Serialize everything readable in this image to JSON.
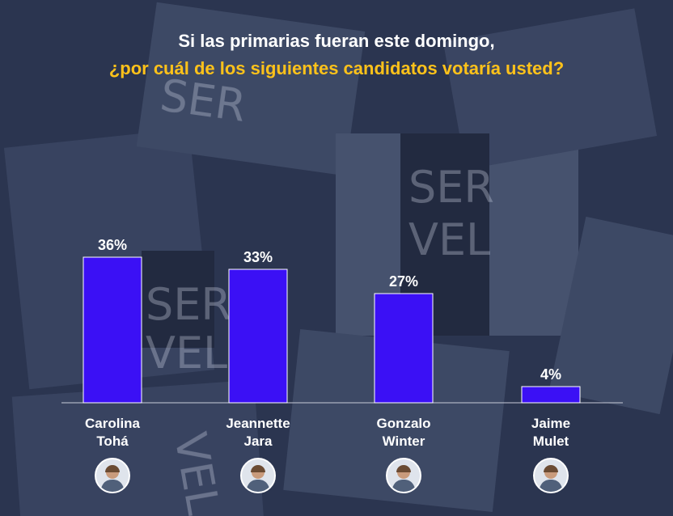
{
  "title_line1": "Si las primarias fueran este domingo,",
  "title_line2": "¿por cuál de los siguientes candidatos votaría usted?",
  "colors": {
    "bar": "#3b10f5",
    "title_highlight": "#ffc21a",
    "text": "#ffffff",
    "background": "#2b3550"
  },
  "background_watermark": [
    "SER",
    "VEL",
    "SER",
    "VEL",
    "SER",
    "VEL"
  ],
  "chart_data": {
    "type": "bar",
    "categories": [
      "Carolina Tohá",
      "Jeannette Jara",
      "Gonzalo Winter",
      "Jaime Mulet"
    ],
    "category_lines": [
      [
        "Carolina",
        "Tohá"
      ],
      [
        "Jeannette",
        "Jara"
      ],
      [
        "Gonzalo",
        "Winter"
      ],
      [
        "Jaime",
        "Mulet"
      ]
    ],
    "values": [
      36,
      33,
      27,
      4
    ],
    "value_labels": [
      "36%",
      "33%",
      "27%",
      "4%"
    ],
    "unit": "%",
    "ylim": [
      0,
      40
    ],
    "grid": false,
    "legend": "none",
    "avatar_icons": [
      "person-photo-icon",
      "person-photo-icon",
      "person-photo-icon",
      "person-photo-icon"
    ]
  }
}
